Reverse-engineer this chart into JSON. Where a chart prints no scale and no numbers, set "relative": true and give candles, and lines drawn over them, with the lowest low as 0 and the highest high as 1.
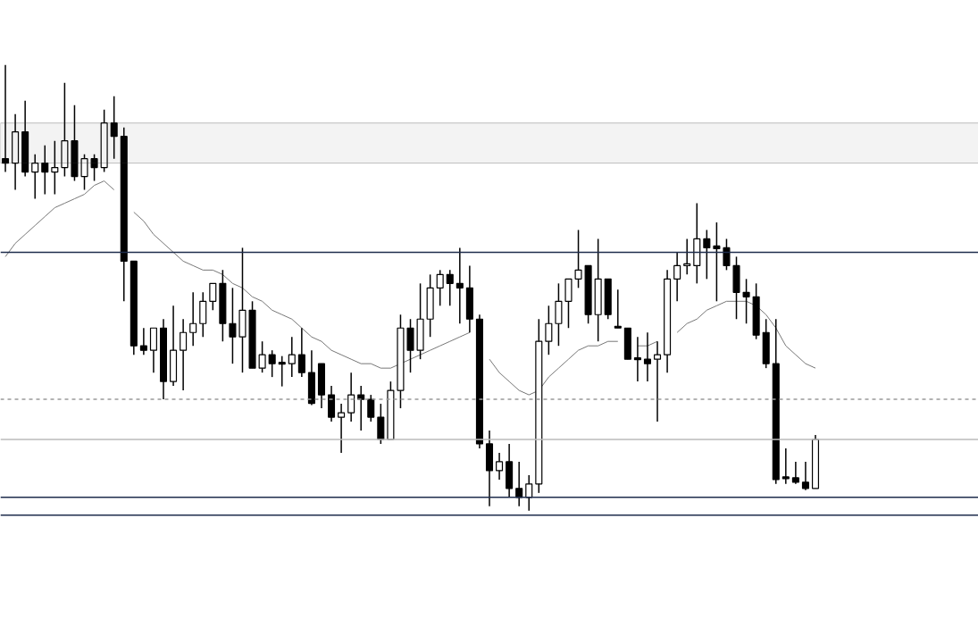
{
  "chart_data": {
    "type": "candlestick",
    "relative": true,
    "tick_labels": false,
    "grid": false,
    "categories": [
      null,
      null,
      null,
      null,
      null,
      null,
      null,
      null,
      null,
      null,
      null,
      null,
      null,
      null,
      null,
      null,
      null,
      null,
      null,
      null,
      null,
      null,
      null,
      null,
      null,
      null,
      null,
      null,
      null,
      null,
      null,
      null,
      null,
      null,
      null,
      null,
      null,
      null,
      null,
      null,
      null,
      null,
      null,
      null,
      null,
      null,
      null,
      null,
      null,
      null,
      null,
      null,
      null,
      null,
      null,
      null,
      null,
      null,
      null,
      null,
      null,
      null,
      null,
      null,
      null,
      null,
      null,
      null,
      null,
      null,
      null,
      null,
      null,
      null,
      null,
      null,
      null,
      null,
      null,
      null,
      null,
      null,
      null
    ],
    "ohlc": [
      [
        0.79,
        1.0,
        0.76,
        0.78
      ],
      [
        0.78,
        0.89,
        0.72,
        0.85
      ],
      [
        0.85,
        0.92,
        0.75,
        0.76
      ],
      [
        0.76,
        0.8,
        0.7,
        0.78
      ],
      [
        0.78,
        0.82,
        0.71,
        0.76
      ],
      [
        0.76,
        0.83,
        0.71,
        0.77
      ],
      [
        0.77,
        0.96,
        0.75,
        0.83
      ],
      [
        0.83,
        0.91,
        0.74,
        0.75
      ],
      [
        0.75,
        0.8,
        0.72,
        0.79
      ],
      [
        0.79,
        0.8,
        0.74,
        0.77
      ],
      [
        0.77,
        0.9,
        0.76,
        0.87
      ],
      [
        0.87,
        0.93,
        0.79,
        0.84
      ],
      [
        0.84,
        0.86,
        0.47,
        0.56
      ],
      [
        0.56,
        0.56,
        0.35,
        0.37
      ],
      [
        0.37,
        0.41,
        0.35,
        0.36
      ],
      [
        0.36,
        0.41,
        0.31,
        0.41
      ],
      [
        0.41,
        0.43,
        0.25,
        0.29
      ],
      [
        0.29,
        0.46,
        0.28,
        0.36
      ],
      [
        0.36,
        0.43,
        0.27,
        0.4
      ],
      [
        0.4,
        0.49,
        0.37,
        0.42
      ],
      [
        0.42,
        0.49,
        0.39,
        0.47
      ],
      [
        0.47,
        0.51,
        0.45,
        0.51
      ],
      [
        0.51,
        0.54,
        0.38,
        0.42
      ],
      [
        0.42,
        0.5,
        0.33,
        0.39
      ],
      [
        0.39,
        0.59,
        0.31,
        0.45
      ],
      [
        0.45,
        0.47,
        0.32,
        0.32
      ],
      [
        0.32,
        0.38,
        0.31,
        0.35
      ],
      [
        0.35,
        0.36,
        0.3,
        0.33
      ],
      [
        0.333,
        0.347,
        0.279,
        0.329
      ],
      [
        0.33,
        0.39,
        0.3,
        0.35
      ],
      [
        0.35,
        0.41,
        0.3,
        0.31
      ],
      [
        0.31,
        0.36,
        0.237,
        0.241
      ],
      [
        0.33,
        0.33,
        0.23,
        0.26
      ],
      [
        0.26,
        0.28,
        0.2,
        0.21
      ],
      [
        0.21,
        0.24,
        0.13,
        0.22
      ],
      [
        0.22,
        0.31,
        0.2,
        0.26
      ],
      [
        0.26,
        0.28,
        0.18,
        0.25
      ],
      [
        0.25,
        0.26,
        0.2,
        0.21
      ],
      [
        0.21,
        0.24,
        0.15,
        0.16
      ],
      [
        0.16,
        0.29,
        0.16,
        0.27
      ],
      [
        0.27,
        0.44,
        0.23,
        0.41
      ],
      [
        0.41,
        0.43,
        0.31,
        0.36
      ],
      [
        0.36,
        0.51,
        0.34,
        0.43
      ],
      [
        0.43,
        0.53,
        0.39,
        0.5
      ],
      [
        0.5,
        0.54,
        0.46,
        0.53
      ],
      [
        0.53,
        0.54,
        0.46,
        0.51
      ],
      [
        0.51,
        0.59,
        0.42,
        0.5
      ],
      [
        0.5,
        0.55,
        0.4,
        0.43
      ],
      [
        0.43,
        0.44,
        0.14,
        0.15
      ],
      [
        0.15,
        0.18,
        0.01,
        0.09
      ],
      [
        0.09,
        0.13,
        0.07,
        0.11
      ],
      [
        0.11,
        0.15,
        0.03,
        0.05
      ],
      [
        0.05,
        0.11,
        0.01,
        0.03
      ],
      [
        0.03,
        0.08,
        0.0,
        0.06
      ],
      [
        0.06,
        0.43,
        0.04,
        0.38
      ],
      [
        0.38,
        0.46,
        0.35,
        0.42
      ],
      [
        0.42,
        0.51,
        0.37,
        0.47
      ],
      [
        0.47,
        0.52,
        0.41,
        0.52
      ],
      [
        0.52,
        0.63,
        0.5,
        0.54
      ],
      [
        0.55,
        0.55,
        0.42,
        0.44
      ],
      [
        0.44,
        0.61,
        0.38,
        0.52
      ],
      [
        0.52,
        0.52,
        0.43,
        0.44
      ],
      [
        0.414,
        0.496,
        0.41,
        0.41
      ],
      [
        0.41,
        0.41,
        0.34,
        0.34
      ],
      [
        0.343,
        0.39,
        0.29,
        0.339
      ],
      [
        0.34,
        0.4,
        0.29,
        0.33
      ],
      [
        0.34,
        0.38,
        0.2,
        0.35
      ],
      [
        0.35,
        0.54,
        0.31,
        0.52
      ],
      [
        0.52,
        0.58,
        0.47,
        0.55
      ],
      [
        0.55,
        0.61,
        0.53,
        0.554
      ],
      [
        0.55,
        0.69,
        0.51,
        0.61
      ],
      [
        0.61,
        0.63,
        0.52,
        0.59
      ],
      [
        0.594,
        0.647,
        0.47,
        0.588
      ],
      [
        0.59,
        0.61,
        0.54,
        0.55
      ],
      [
        0.55,
        0.57,
        0.43,
        0.49
      ],
      [
        0.49,
        0.52,
        0.42,
        0.48
      ],
      [
        0.48,
        0.51,
        0.385,
        0.394
      ],
      [
        0.4,
        0.43,
        0.32,
        0.33
      ],
      [
        0.33,
        0.43,
        0.06,
        0.07
      ],
      [
        0.076,
        0.14,
        0.06,
        0.072
      ],
      [
        0.074,
        0.11,
        0.06,
        0.064
      ],
      [
        0.064,
        0.11,
        0.046,
        0.05
      ],
      [
        0.05,
        0.17,
        0.05,
        0.16
      ]
    ],
    "series": [
      {
        "type": "line",
        "color": "#777777",
        "values": [
          0.57,
          0.6,
          0.62,
          0.64,
          0.66,
          0.68,
          0.69,
          0.7,
          0.71,
          0.73,
          0.74,
          0.72,
          null,
          0.67,
          0.65,
          0.62,
          0.6,
          0.58,
          0.56,
          0.55,
          0.54,
          0.54,
          0.53,
          0.51,
          0.5,
          0.48,
          0.47,
          0.45,
          0.44,
          0.43,
          0.41,
          0.39,
          0.38,
          0.36,
          0.35,
          0.34,
          0.33,
          0.33,
          0.32,
          0.32,
          0.33,
          0.34,
          0.35,
          0.36,
          0.37,
          0.38,
          0.39,
          0.4,
          null,
          0.34,
          0.31,
          0.29,
          0.27,
          0.26,
          0.27,
          0.3,
          0.32,
          0.34,
          0.36,
          0.37,
          0.37,
          0.38,
          0.38,
          null,
          0.37,
          0.37,
          0.38,
          null,
          0.4,
          0.42,
          0.43,
          0.45,
          0.46,
          0.47,
          0.47,
          0.47,
          0.46,
          0.44,
          0.41,
          0.37,
          0.35,
          0.33,
          0.32
        ]
      }
    ],
    "ref_lines": [
      {
        "axis": "y",
        "value": 0.58,
        "color": "#1f2d4d",
        "line_style": "solid"
      },
      {
        "axis": "y",
        "value": 0.25,
        "color": "#999999",
        "line_style": "dashed"
      },
      {
        "axis": "y",
        "value": 0.16,
        "color": "#bbbbbb",
        "line_style": "solid"
      },
      {
        "axis": "y",
        "value": 0.03,
        "color": "#1f2d4d",
        "line_style": "solid"
      },
      {
        "axis": "y",
        "value": -0.01,
        "color": "#1f2d4d",
        "line_style": "solid"
      }
    ],
    "bands": [
      {
        "axis": "y",
        "from": 0.78,
        "to": 0.87,
        "color": "#333333"
      }
    ]
  }
}
